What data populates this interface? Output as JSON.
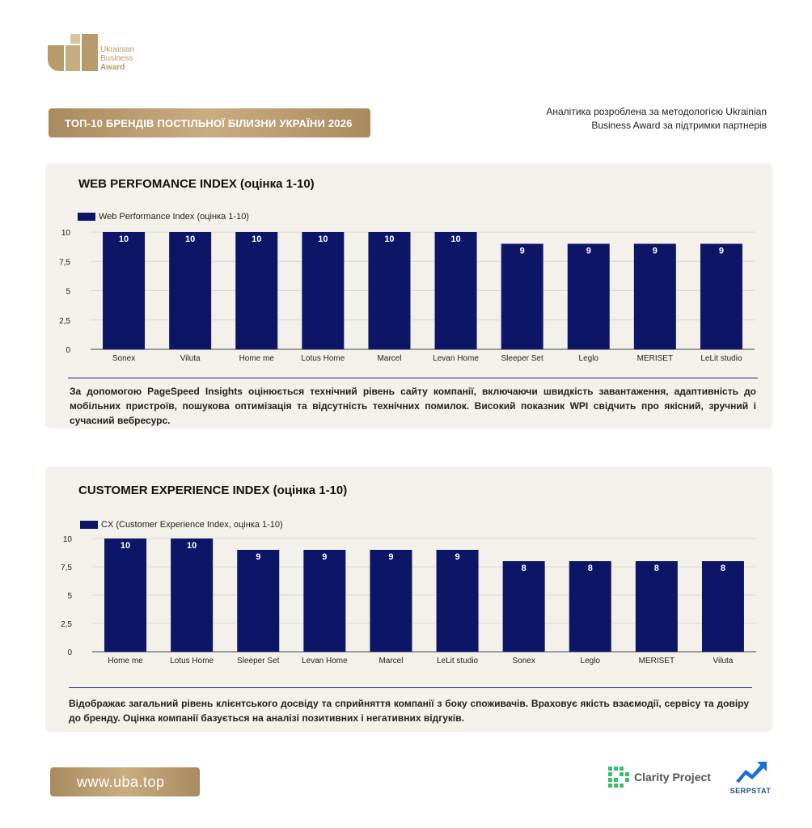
{
  "logo": {
    "line1": "Ukrainian",
    "line2": "Business",
    "line3": "Award"
  },
  "header": {
    "title": "ТОП-10 БРЕНДІВ ПОСТІЛЬНОЇ БІЛИЗНИ УКРАЇНИ 2026",
    "note_line1": "Аналітика розроблена за методологією Ukrainian",
    "note_line2": "Business Award за підтримки партнерів"
  },
  "colors": {
    "bar": "#0d1566",
    "gold": "#b99a6a",
    "panel": "#f3f1ea"
  },
  "chart_data": [
    {
      "type": "bar",
      "title": "WEB PERFOMANCE INDEX (оцінка 1-10)",
      "legend": "Web Performance Index (оцінка 1-10)",
      "categories": [
        "Sonex",
        "Viluta",
        "Home me",
        "Lotus Home",
        "Marcel",
        "Levan Home",
        "Sleeper Set",
        "Leglo",
        "MERISET",
        "LeLit studio"
      ],
      "values": [
        10,
        10,
        10,
        10,
        10,
        10,
        9,
        9,
        9,
        9
      ],
      "yticks": [
        "0",
        "2,5",
        "5",
        "7,5",
        "10"
      ],
      "ylim": [
        0,
        10
      ],
      "grid": true,
      "description": "За допомогою PageSpeed Insights оцінюється технічний рівень сайту компанії, включаючи швидкість завантаження, адаптивність до мобільних пристроїв, пошукова оптимізація та відсутність технічних помилок. Високий показник WPI свідчить про якісний, зручний і сучасний вебресурс."
    },
    {
      "type": "bar",
      "title": "CUSTOMER EXPERIENCE INDEX (оцінка 1-10)",
      "legend": "CX (Customer Experience Index, оцінка 1-10)",
      "categories": [
        "Home me",
        "Lotus Home",
        "Sleeper Set",
        "Levan Home",
        "Marcel",
        "LeLit studio",
        "Sonex",
        "Leglo",
        "MERISET",
        "Viluta"
      ],
      "values": [
        10,
        10,
        9,
        9,
        9,
        9,
        8,
        8,
        8,
        8
      ],
      "yticks": [
        "0",
        "2,5",
        "5",
        "7,5",
        "10"
      ],
      "ylim": [
        0,
        10
      ],
      "grid": true,
      "description": "Відображає загальний рівень клієнтського досвіду та сприйняття компанії з боку споживачів. Враховує якість взаємодії, сервісу та довіру до бренду. Оцінка компанії базується на аналізі позитивних і негативних відгуків."
    }
  ],
  "footer": {
    "url": "www.uba.top",
    "partner1": "Clarity Project",
    "partner2": "SERPSTAT"
  }
}
